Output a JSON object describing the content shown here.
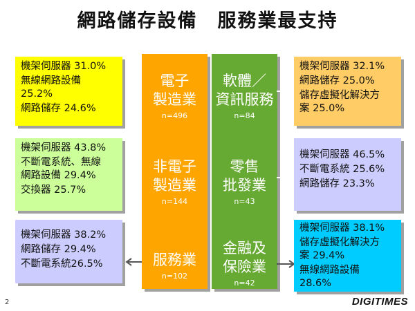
{
  "title": "網路儲存設備　服務業最支持",
  "left_boxes": [
    {
      "color": "#ffff00",
      "lines": [
        "機架伺服器 31.0%",
        "無線網路設備",
        "25.2%",
        "網路儲存 24.6%"
      ]
    },
    {
      "color": "#ccff99",
      "lines": [
        "機架伺服器 43.8%",
        "不斷電系統、無線",
        "網路設備 29.4%",
        "交換器 25.7%"
      ]
    },
    {
      "color": "#ccccff",
      "lines": [
        "機架伺服器 38.2%",
        "網路儲存 29.4%",
        "不斷電系統26.5%"
      ]
    }
  ],
  "center_orange": {
    "color": "#ffa500",
    "cells": [
      {
        "name_lines": [
          "電子",
          "製造業"
        ],
        "n": "n=496"
      },
      {
        "name_lines": [
          "非電子",
          "製造業"
        ],
        "n": "n=144"
      },
      {
        "name_lines": [
          "服務業"
        ],
        "n": "n=102"
      }
    ]
  },
  "center_green": {
    "color": "#66aa33",
    "cells": [
      {
        "name_lines": [
          "軟體／",
          "資訊服務"
        ],
        "n": "n=84"
      },
      {
        "name_lines": [
          "零售",
          "批發業"
        ],
        "n": "n=43"
      },
      {
        "name_lines": [
          "金融及",
          "保險業"
        ],
        "n": "n=42"
      }
    ]
  },
  "right_boxes": [
    {
      "color": "#ffcc66",
      "lines": [
        "機架伺服器 32.1%",
        "網路儲存 25.0%",
        "儲存虛擬化解決方",
        "案 25.0%"
      ]
    },
    {
      "color": "#ccccff",
      "lines": [
        "機架伺服器 46.5%",
        "不斷電系統 25.6%",
        "網路儲存 23.3%"
      ]
    },
    {
      "color": "#00ccff",
      "lines": [
        "機架伺服器 38.1%",
        "儲存虛擬化解決方",
        "案 29.4%",
        "無線網路設備",
        "28.6%"
      ]
    }
  ],
  "page_number": "2",
  "logo": "DIGITIMES"
}
